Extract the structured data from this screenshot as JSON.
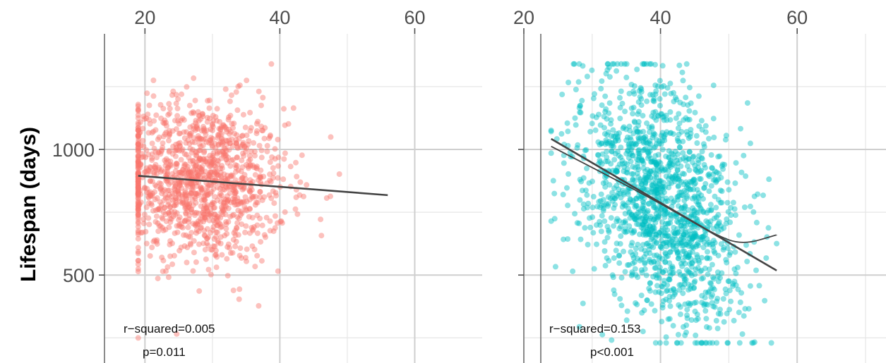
{
  "ylabel": "Lifespan (days)",
  "colors": {
    "left": "#F8766D",
    "right": "#00BFC4",
    "line": "#444444"
  },
  "chart_data": [
    {
      "type": "scatter",
      "panel": "left",
      "xlabel": "",
      "ylabel": "Lifespan (days)",
      "xlim": [
        14,
        70
      ],
      "ylim": [
        150,
        1460
      ],
      "xticks": [
        20,
        40,
        60
      ],
      "yticks": [
        500,
        1000
      ],
      "grid": true,
      "point_color": "#F8766D",
      "n_points_approx": 1300,
      "cloud": {
        "x_mean": 28,
        "x_sd": 6.5,
        "x_range": [
          19,
          56
        ],
        "y_mean": 850,
        "y_sd": 160,
        "y_range": [
          250,
          1340
        ]
      },
      "fit_line": {
        "x": [
          19,
          56
        ],
        "y": [
          895,
          818
        ]
      },
      "annotation": {
        "r_squared": "r−squared=0.005",
        "p": "p=0.011"
      }
    },
    {
      "type": "scatter",
      "panel": "right",
      "xlabel": "",
      "ylabel": "",
      "xlim": [
        20,
        73
      ],
      "ylim": [
        150,
        1460
      ],
      "xticks": [
        20,
        40,
        60
      ],
      "yticks": [
        500,
        1000
      ],
      "grid": true,
      "point_color": "#00BFC4",
      "n_points_approx": 1500,
      "cloud": {
        "x_mean": 40,
        "x_sd": 6,
        "x_range": [
          24,
          57
        ],
        "y_mean": 800,
        "y_sd": 230,
        "y_range": [
          230,
          1340
        ]
      },
      "fit_line": {
        "x": [
          24,
          57
        ],
        "y": [
          1042,
          518
        ]
      },
      "smooth_line": {
        "x": [
          24,
          32,
          40,
          48,
          52,
          57
        ],
        "y": [
          1012,
          900,
          785,
          660,
          620,
          660
        ]
      },
      "annotation": {
        "r_squared": "r−squared=0.153",
        "p": "p<0.001"
      }
    }
  ]
}
